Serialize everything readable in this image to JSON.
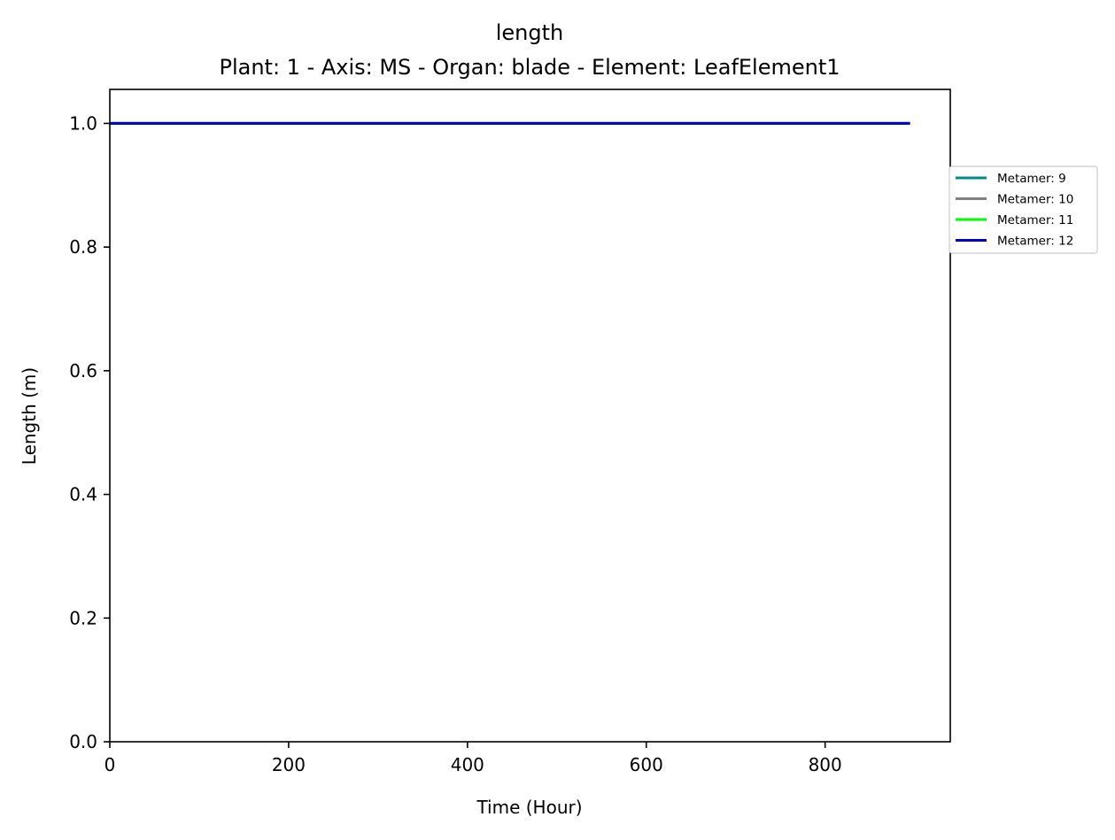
{
  "chart_data": {
    "type": "line",
    "title": "length",
    "subtitle": "Plant: 1 - Axis: MS - Organ: blade - Element: LeafElement1",
    "xlabel": "Time (Hour)",
    "ylabel": "Length (m)",
    "xlim": [
      0,
      940
    ],
    "ylim": [
      0,
      1.055
    ],
    "xticks": [
      0,
      200,
      400,
      600,
      800
    ],
    "yticks": [
      0.0,
      0.2,
      0.4,
      0.6,
      0.8,
      1.0
    ],
    "xtick_labels": [
      "0",
      "200",
      "400",
      "600",
      "800"
    ],
    "ytick_labels": [
      "0.0",
      "0.2",
      "0.4",
      "0.6",
      "0.8",
      "1.0"
    ],
    "grid": false,
    "legend_position": "outside-right-top",
    "series": [
      {
        "name": "Metamer: 9",
        "color": "#008b8b",
        "x": [
          0,
          895
        ],
        "y": [
          1.0,
          1.0
        ]
      },
      {
        "name": "Metamer: 10",
        "color": "#808080",
        "x": [
          0,
          895
        ],
        "y": [
          1.0,
          1.0
        ]
      },
      {
        "name": "Metamer: 11",
        "color": "#00ff00",
        "x": [
          0,
          895
        ],
        "y": [
          1.0,
          1.0
        ]
      },
      {
        "name": "Metamer: 12",
        "color": "#0000cd",
        "x": [
          0,
          895
        ],
        "y": [
          1.0,
          1.0
        ]
      }
    ]
  }
}
